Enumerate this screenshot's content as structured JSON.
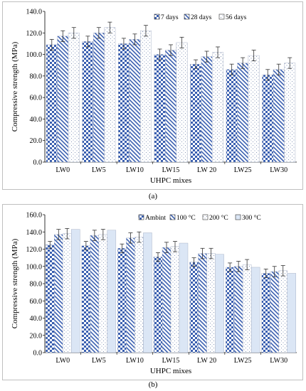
{
  "chart_data": [
    {
      "type": "bar",
      "ylabel": "Compressive strength (MPa)",
      "xlabel": "UHPC mixes",
      "ylim": [
        0,
        140
      ],
      "yticks": [
        "0.0",
        "20.0",
        "40.0",
        "60.0",
        "80.0",
        "100.0",
        "120.0",
        "140.0"
      ],
      "grid": false,
      "legend_position": "top-right",
      "categories": [
        "LW0",
        "LW5",
        "LW10",
        "LW15",
        "LW 20",
        "LW25",
        "LW30"
      ],
      "series": [
        {
          "name": "7 days",
          "pattern": "checker",
          "values": [
            109,
            112,
            110,
            100,
            91,
            86,
            81
          ],
          "errors": [
            5,
            5,
            5,
            5,
            4,
            5,
            5
          ]
        },
        {
          "name": "28 days",
          "pattern": "diagonal",
          "values": [
            117,
            120,
            114,
            104,
            98,
            92,
            86
          ],
          "errors": [
            5,
            5,
            5,
            5,
            5,
            5,
            5
          ]
        },
        {
          "name": "56 days",
          "pattern": "dots",
          "values": [
            120,
            125,
            122,
            111,
            102,
            99,
            92
          ],
          "errors": [
            5,
            5,
            5,
            5,
            5,
            5,
            5
          ]
        }
      ],
      "caption": "(a)",
      "colors": {
        "blue": "#3a5fb0",
        "bar_fill": "#ffffff"
      }
    },
    {
      "type": "bar",
      "ylabel": "Compressive strength (MPa)",
      "xlabel": "UHPC mixes",
      "ylim": [
        0,
        160
      ],
      "yticks": [
        "0.0",
        "20.0",
        "40.0",
        "60.0",
        "80.0",
        "100.0",
        "120.0",
        "140.0",
        "160.0"
      ],
      "grid": false,
      "legend_position": "top-right",
      "categories": [
        "LW0",
        "LW5",
        "LW10",
        "LW15",
        "LW 20",
        "LW25",
        "LW30"
      ],
      "series": [
        {
          "name": "Ambint",
          "pattern": "checker",
          "values": [
            125,
            124,
            121,
            111,
            105,
            99,
            92
          ],
          "errors": [
            4,
            5,
            5,
            5,
            5,
            5,
            5
          ]
        },
        {
          "name": "100 °C",
          "pattern": "diagonal",
          "values": [
            137,
            136,
            133,
            122,
            115,
            100,
            94
          ],
          "errors": [
            6,
            6,
            6,
            6,
            6,
            6,
            6
          ]
        },
        {
          "name": "200 °C",
          "pattern": "dots",
          "values": [
            138,
            137,
            134,
            123,
            115,
            102,
            95
          ],
          "errors": [
            6,
            6,
            6,
            6,
            6,
            6,
            6
          ]
        },
        {
          "name": "300 °C",
          "pattern": "lightblue",
          "values": [
            143,
            142,
            139,
            127,
            114,
            99,
            92
          ],
          "errors": [
            0,
            0,
            0,
            0,
            0,
            0,
            0
          ]
        }
      ],
      "caption": "(b)",
      "colors": {
        "blue": "#3a5fb0",
        "light_blue": "#dbe6f5"
      }
    }
  ]
}
